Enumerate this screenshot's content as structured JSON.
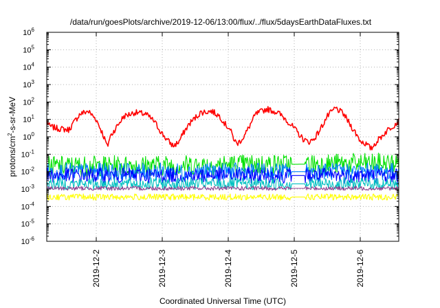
{
  "chart_data": {
    "type": "line",
    "title": "/data/run/goesPlots/archive/2019-12-06/13:00/flux/../flux/5daysEarthDataFluxes.txt",
    "xlabel": "Coordinated Universal Time (UTC)",
    "ylabel": "protons/cm2-s-sr-MeV",
    "ylabel_parts": [
      "protons/cm",
      "2",
      "-s-sr-MeV"
    ],
    "yscale": "log",
    "ylim": [
      1e-06,
      1000000.0
    ],
    "y_ticks": [
      {
        "value": 1e-06,
        "exp": "-6"
      },
      {
        "value": 1e-05,
        "exp": "-5"
      },
      {
        "value": 0.0001,
        "exp": "-4"
      },
      {
        "value": 0.001,
        "exp": "-3"
      },
      {
        "value": 0.01,
        "exp": "-2"
      },
      {
        "value": 0.1,
        "exp": "-1"
      },
      {
        "value": 1,
        "exp": "0"
      },
      {
        "value": 10,
        "exp": "1"
      },
      {
        "value": 100,
        "exp": "2"
      },
      {
        "value": 1000,
        "exp": "3"
      },
      {
        "value": 10000,
        "exp": "4"
      },
      {
        "value": 100000,
        "exp": "5"
      },
      {
        "value": 1000000,
        "exp": "6"
      }
    ],
    "y_tick_base": "10",
    "xlim": [
      "2019-12-01T06:00",
      "2019-12-06T14:00"
    ],
    "x_ticks": [
      {
        "label": "2019-12-2",
        "value": "2019-12-02T00:00"
      },
      {
        "label": "2019-12-3",
        "value": "2019-12-03T00:00"
      },
      {
        "label": "2019-12-4",
        "value": "2019-12-04T00:00"
      },
      {
        "label": "2019-12-5",
        "value": "2019-12-05T00:00"
      },
      {
        "label": "2019-12-6",
        "value": "2019-12-06T00:00"
      }
    ],
    "grid": true,
    "legend": "none",
    "data_gap": [
      "2019-12-04T23:00",
      "2019-12-05T04:00"
    ],
    "series": [
      {
        "color": "#ff0000",
        "x": [
          "2019-12-01T06:00",
          "2019-12-01T07:00",
          "2019-12-01T10:00",
          "2019-12-01T14:00",
          "2019-12-01T18:00",
          "2019-12-01T21:00",
          "2019-12-02T00:00",
          "2019-12-02T02:00",
          "2019-12-02T03:30",
          "2019-12-02T04:00",
          "2019-12-02T05:00",
          "2019-12-02T07:00",
          "2019-12-02T10:00",
          "2019-12-02T14:00",
          "2019-12-02T18:00",
          "2019-12-02T21:00",
          "2019-12-03T00:00",
          "2019-12-03T02:00",
          "2019-12-03T04:00",
          "2019-12-03T06:00",
          "2019-12-03T08:00",
          "2019-12-03T10:00",
          "2019-12-03T14:00",
          "2019-12-03T18:00",
          "2019-12-03T21:00",
          "2019-12-03T23:00",
          "2019-12-04T00:30",
          "2019-12-04T02:00",
          "2019-12-04T03:00",
          "2019-12-04T04:00",
          "2019-12-04T06:00",
          "2019-12-04T08:00",
          "2019-12-04T10:00",
          "2019-12-04T14:00",
          "2019-12-04T18:00",
          "2019-12-04T21:00",
          "2019-12-05T00:00",
          "2019-12-05T03:00",
          "2019-12-05T05:00",
          "2019-12-05T07:00",
          "2019-12-05T09:00",
          "2019-12-05T12:00",
          "2019-12-05T15:00",
          "2019-12-05T18:00",
          "2019-12-05T20:00",
          "2019-12-05T22:00",
          "2019-12-06T00:00",
          "2019-12-06T02:00",
          "2019-12-06T04:00",
          "2019-12-06T05:00",
          "2019-12-06T07:00",
          "2019-12-06T10:00",
          "2019-12-06T14:00"
        ],
        "y": [
          8,
          4,
          3,
          2.5,
          20,
          30,
          10,
          2,
          0.5,
          0.25,
          1,
          3,
          15,
          25,
          20,
          8,
          1.5,
          0.6,
          0.3,
          0.5,
          2,
          6,
          25,
          30,
          15,
          5,
          3,
          0.8,
          0.4,
          0.5,
          1.2,
          5,
          20,
          40,
          25,
          10,
          3,
          0.8,
          0.5,
          0.7,
          2,
          15,
          45,
          20,
          6,
          2,
          0.6,
          0.4,
          0.2,
          0.35,
          0.8,
          2.5,
          8
        ]
      },
      {
        "color": "#00e000",
        "x": [
          "2019-12-01T06:00",
          "2019-12-06T14:00"
        ],
        "y": [
          0.02,
          0.03
        ],
        "noisy": true,
        "spread": 0.6
      },
      {
        "color": "#0080ff",
        "x": [
          "2019-12-01T06:00",
          "2019-12-06T14:00"
        ],
        "y": [
          0.01,
          0.01
        ],
        "noisy": true,
        "spread": 0.5
      },
      {
        "color": "#0000ff",
        "x": [
          "2019-12-01T06:00",
          "2019-12-06T14:00"
        ],
        "y": [
          0.006,
          0.006
        ],
        "noisy": true,
        "spread": 0.45
      },
      {
        "color": "#00c0c0",
        "x": [
          "2019-12-01T06:00",
          "2019-12-06T14:00"
        ],
        "y": [
          0.002,
          0.002
        ],
        "noisy": true,
        "spread": 0.35
      },
      {
        "color": "#904090",
        "x": [
          "2019-12-01T06:00",
          "2019-12-06T14:00"
        ],
        "y": [
          0.0011,
          0.0011
        ],
        "noisy": true,
        "spread": 0.12
      },
      {
        "color": "#ffff00",
        "x": [
          "2019-12-01T06:00",
          "2019-12-06T14:00"
        ],
        "y": [
          0.00035,
          0.00035
        ],
        "noisy": true,
        "spread": 0.18
      }
    ]
  }
}
